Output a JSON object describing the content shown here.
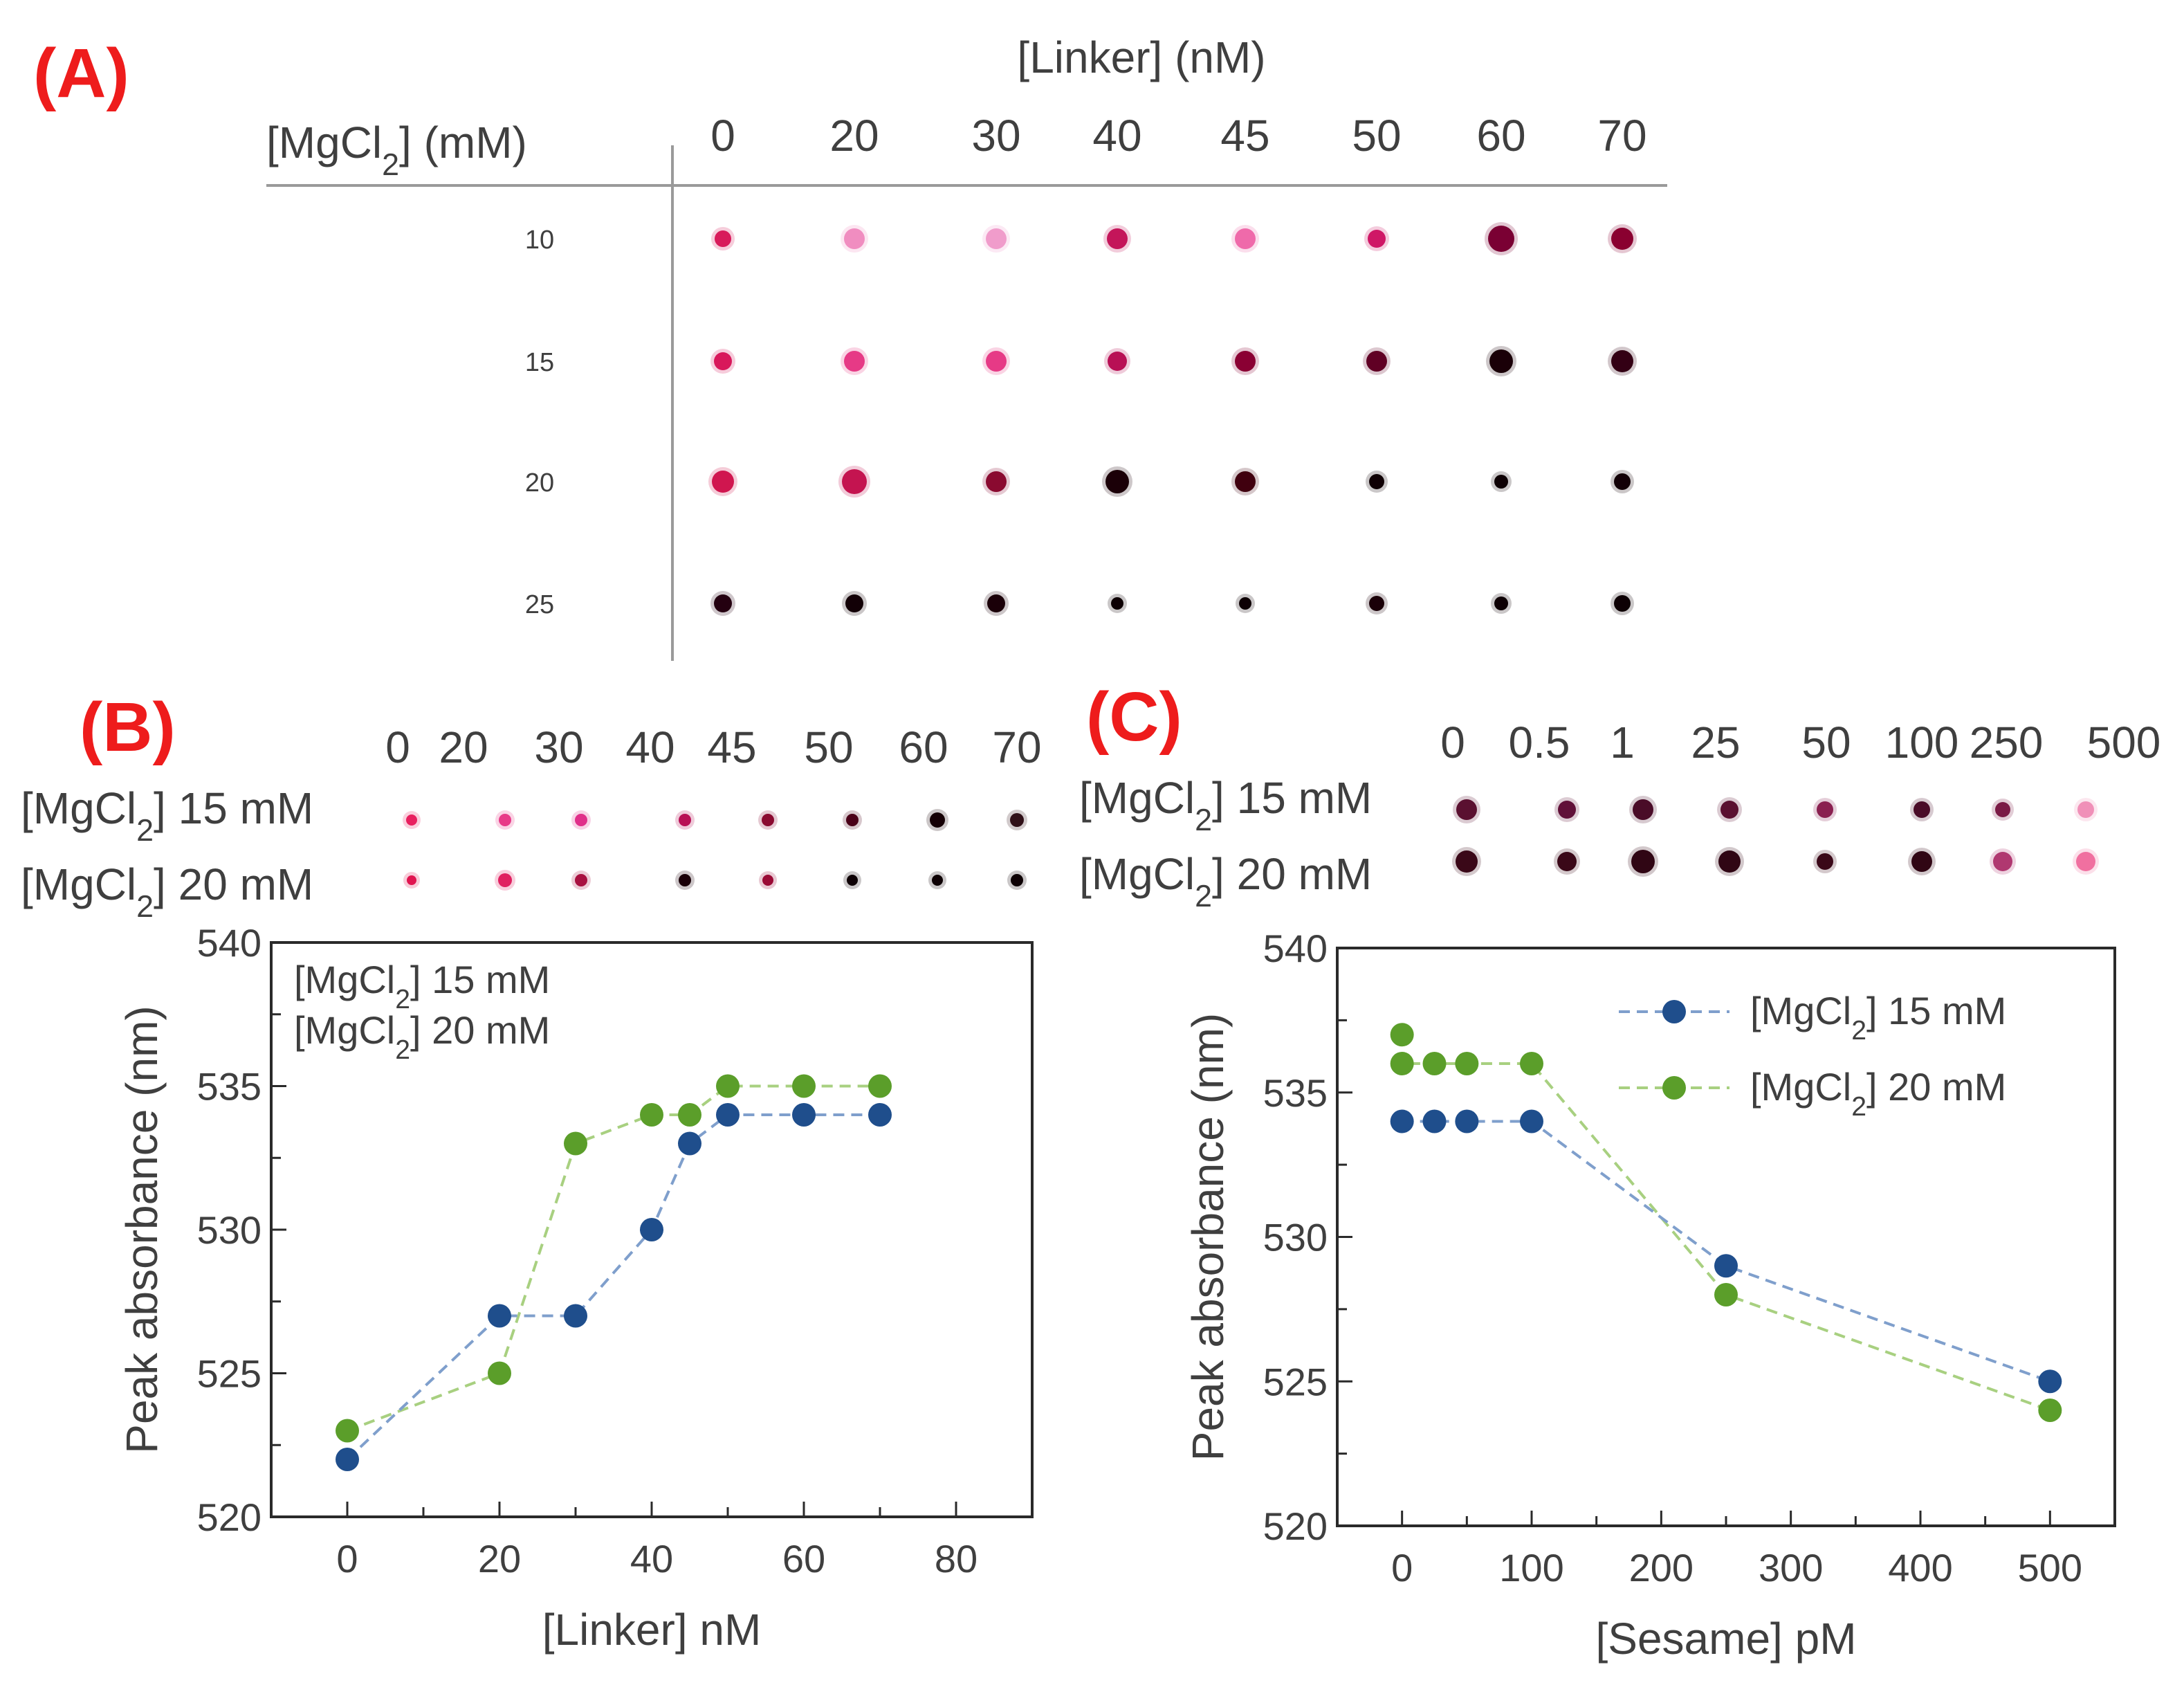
{
  "colors": {
    "label_red": "#ee1c1c",
    "series_15mM": "#1f4e8c",
    "series_20mM": "#5b9e2a",
    "line_15mM": "#7f9fcc",
    "line_20mM": "#a8d080",
    "spot_light": "#f2a5c8",
    "spot_mid": "#e4307a",
    "spot_dark": "#150008"
  },
  "panelA": {
    "label": "(A)",
    "col_title": "[Linker] (nM)",
    "row_title": "[MgCl2] (mM)",
    "columns": [
      "0",
      "20",
      "30",
      "40",
      "45",
      "50",
      "60",
      "70"
    ],
    "rows": [
      "10",
      "15",
      "20",
      "25"
    ]
  },
  "panelB": {
    "label": "(B)",
    "strip_cols": [
      "0",
      "20",
      "30",
      "40",
      "45",
      "50",
      "60",
      "70"
    ],
    "strip_rows": [
      "[MgCl2] 15 mM",
      "[MgCl2] 20 mM"
    ]
  },
  "panelC": {
    "label": "(C)",
    "strip_cols": [
      "0",
      "0.5",
      "1",
      "25",
      "50",
      "100",
      "250",
      "500"
    ],
    "strip_rows": [
      "[MgCl2] 15 mM",
      "[MgCl2] 20 mM"
    ]
  },
  "chart_data": [
    {
      "type": "line",
      "panel": "B",
      "title": "",
      "xlabel": "[Linker] nM",
      "ylabel": "Peak absorbance (nm)",
      "xlim": [
        -10,
        90
      ],
      "ylim": [
        520,
        540
      ],
      "xticks": [
        0,
        20,
        40,
        60,
        80
      ],
      "yticks": [
        520,
        525,
        530,
        535,
        540
      ],
      "legend": "top-left",
      "series": [
        {
          "name": "[MgCl2] 15 mM",
          "x": [
            0,
            20,
            30,
            40,
            45,
            50,
            60,
            70
          ],
          "values": [
            522,
            527,
            527,
            530,
            533,
            534,
            534,
            534
          ]
        },
        {
          "name": "[MgCl2] 20 mM",
          "x": [
            0,
            20,
            30,
            40,
            45,
            50,
            60,
            70
          ],
          "values": [
            523,
            525,
            533,
            534,
            534,
            535,
            535,
            535
          ]
        }
      ]
    },
    {
      "type": "line",
      "panel": "C",
      "title": "",
      "xlabel": "[Sesame] pM",
      "ylabel": "Peak absorbance (nm)",
      "xlim": [
        -50,
        550
      ],
      "ylim": [
        520,
        540
      ],
      "xticks": [
        0,
        100,
        200,
        300,
        400,
        500
      ],
      "yticks": [
        520,
        525,
        530,
        535,
        540
      ],
      "legend": "top-right",
      "series": [
        {
          "name": "[MgCl2] 15 mM",
          "x": [
            0,
            25,
            50,
            100,
            250,
            500
          ],
          "values": [
            534,
            534,
            534,
            534,
            529,
            525
          ]
        },
        {
          "name": "[MgCl2] 20 mM",
          "x": [
            0,
            0,
            25,
            50,
            100,
            250,
            500
          ],
          "values": [
            537,
            536,
            536,
            536,
            536,
            528,
            524
          ]
        }
      ]
    }
  ]
}
